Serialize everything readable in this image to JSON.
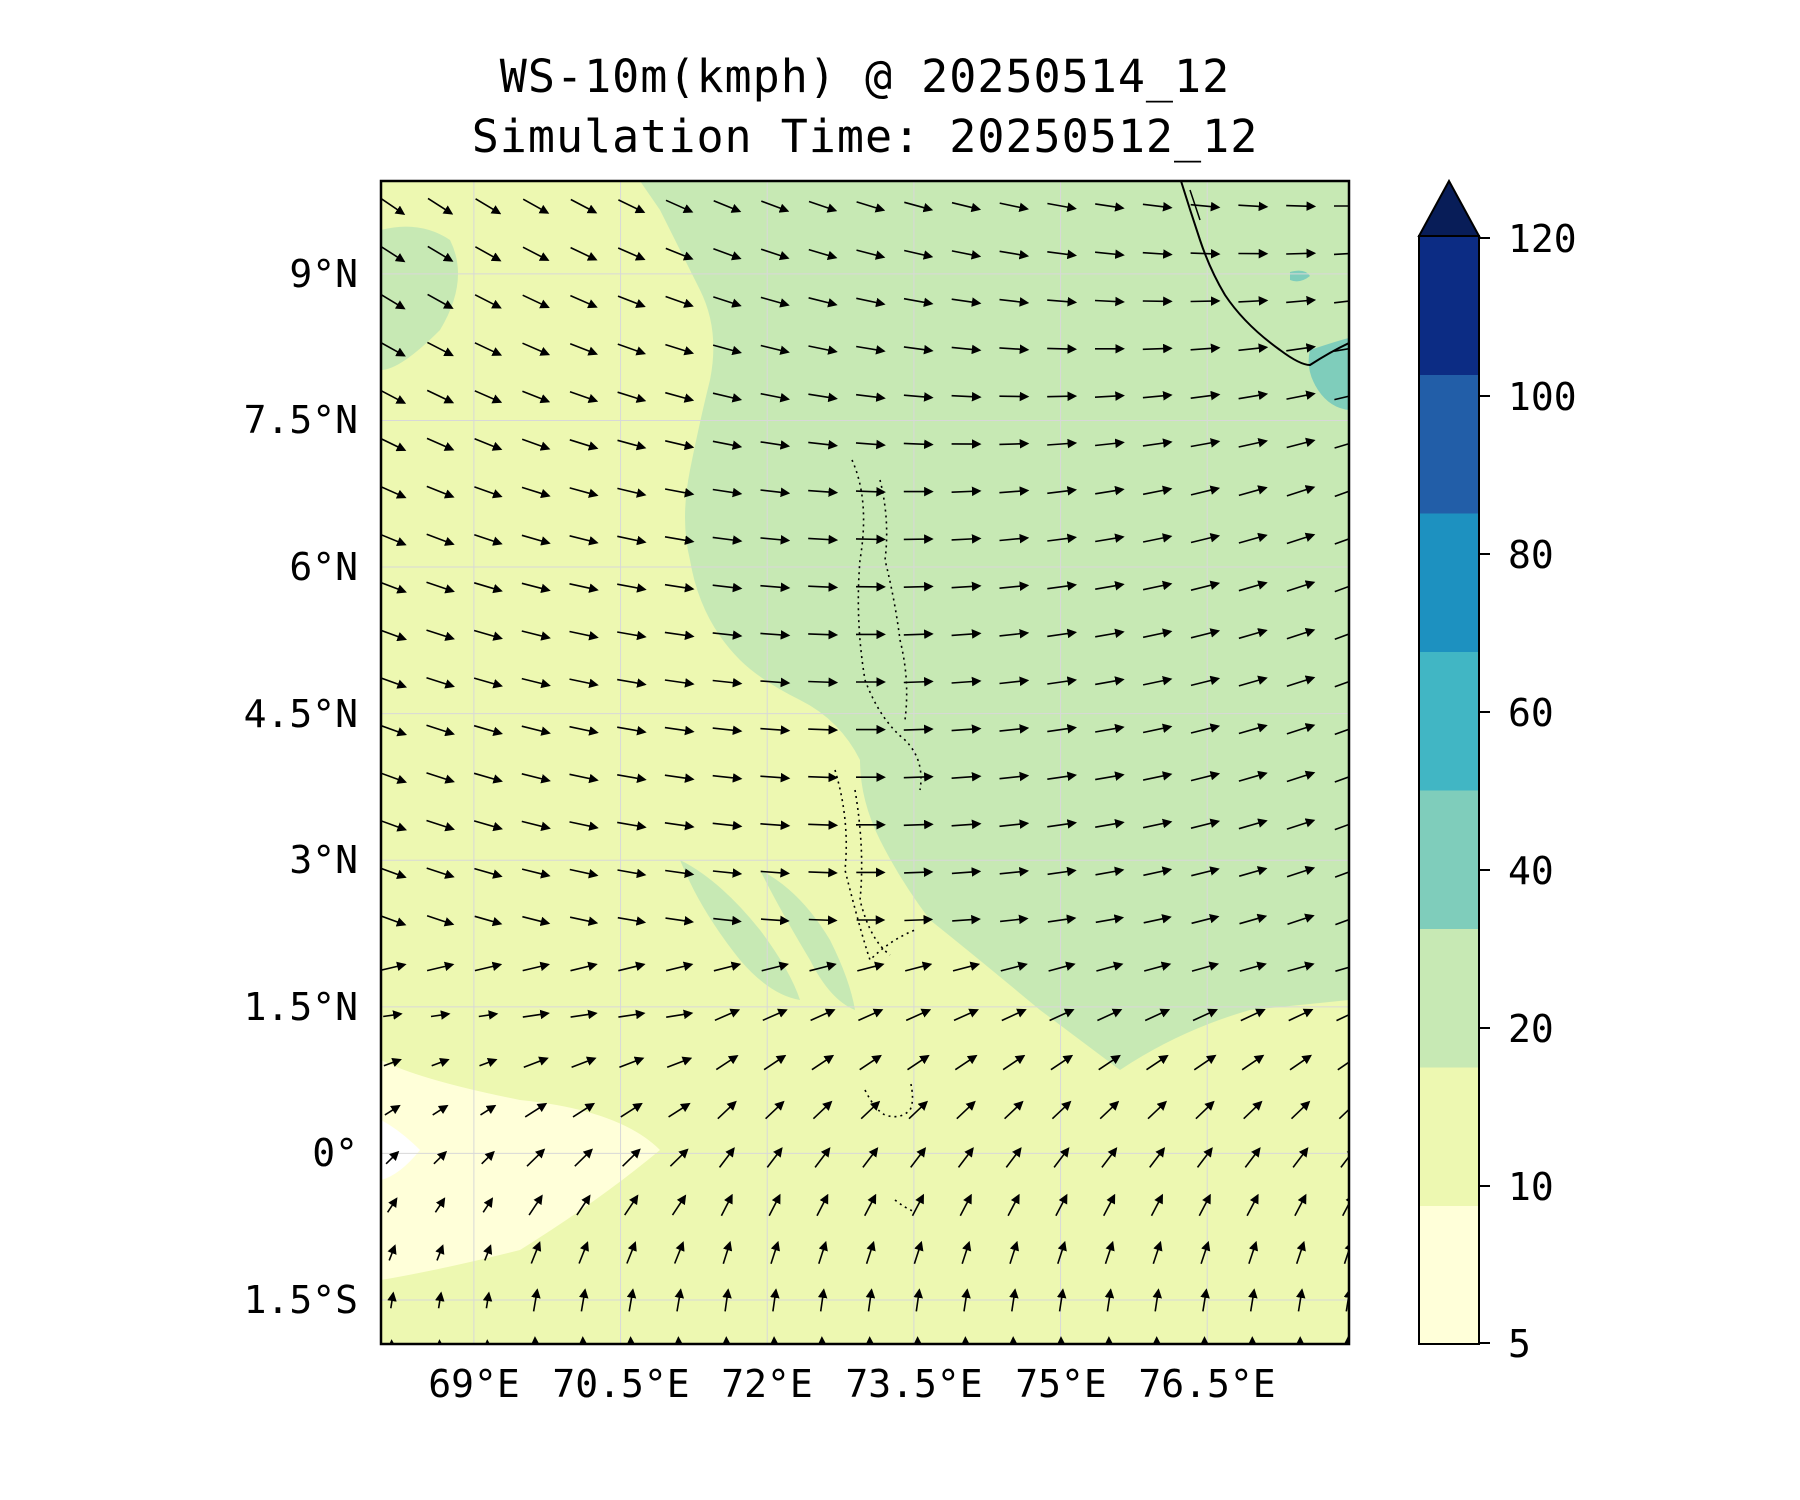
{
  "map": {
    "title_line1": "WS-10m(kmph) @ 20250514_12",
    "title_line2": "Simulation Time: 20250512_12",
    "lat_labels": [
      "9°N",
      "7.5°N",
      "6°N",
      "4.5°N",
      "3°N",
      "1.5°N",
      "0°",
      "1.5°S"
    ],
    "lon_labels": [
      "69°E",
      "70.5°E",
      "72°E",
      "73.5°E",
      "75°E",
      "76.5°E"
    ],
    "extent": {
      "lon_min": 68.05,
      "lon_max": 77.95,
      "lat_min": -1.95,
      "lat_max": 9.95
    },
    "field": "10 m wind speed and direction vectors over the Arabian Sea / Maldives region",
    "features": [
      "coastline",
      "maldives-islands",
      "southern-india-tip"
    ],
    "colors": {
      "frame": "#000000",
      "gridline": "#d8d8d8",
      "arrow": "#000000",
      "coast": "#000000"
    }
  },
  "colorbar": {
    "tick_labels": [
      "120",
      "100",
      "80",
      "60",
      "40",
      "20",
      "10",
      "5"
    ],
    "levels": [
      5,
      10,
      20,
      40,
      60,
      80,
      100,
      120
    ],
    "colors": [
      "#ffffd9",
      "#edf8b1",
      "#c7e9b4",
      "#7fcdbb",
      "#41b6c4",
      "#1d91c0",
      "#225ea8",
      "#0c2c84"
    ],
    "extend_color": "#081d58",
    "extend": "max"
  }
}
